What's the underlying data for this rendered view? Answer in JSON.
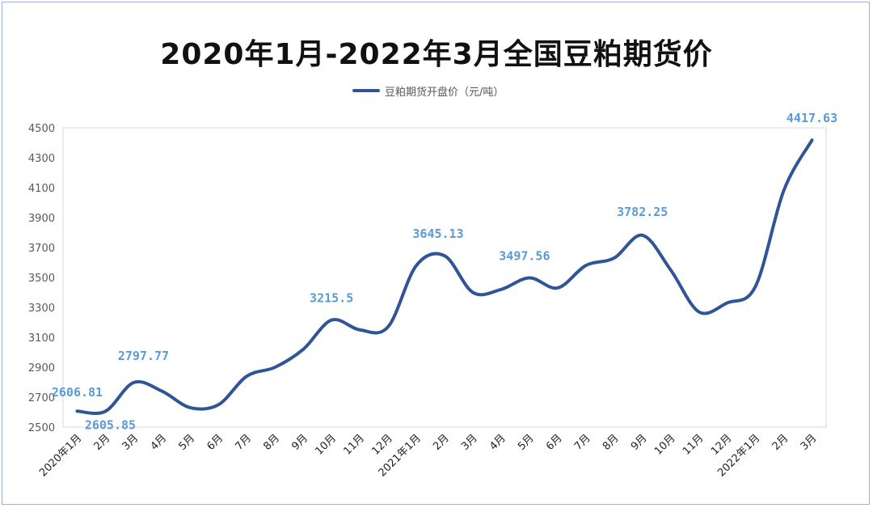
{
  "chart_data": {
    "type": "line",
    "title": "2020年1月-2022年3月全国豆粕期货价",
    "legend": "豆粕期货开盘价（元/吨）",
    "color": "#2f5597",
    "label_color": "#5b9bd5",
    "ylim": [
      2500,
      4500
    ],
    "yticks": [
      2500,
      2700,
      2900,
      3100,
      3300,
      3500,
      3700,
      3900,
      4100,
      4300,
      4500
    ],
    "categories": [
      "2020年1月",
      "2月",
      "3月",
      "4月",
      "5月",
      "6月",
      "7月",
      "8月",
      "9月",
      "10月",
      "11月",
      "12月",
      "2021年1月",
      "2月",
      "3月",
      "4月",
      "5月",
      "6月",
      "7月",
      "8月",
      "9月",
      "10月",
      "11月",
      "12月",
      "2022年1月",
      "2月",
      "3月"
    ],
    "values": [
      2606.81,
      2605.85,
      2797.77,
      2740,
      2630,
      2650,
      2840,
      2900,
      3020,
      3215.5,
      3150,
      3170,
      3580,
      3645.13,
      3400,
      3420,
      3497.56,
      3430,
      3580,
      3630,
      3782.25,
      3550,
      3270,
      3330,
      3440,
      4080,
      4417.63
    ],
    "data_labels": [
      {
        "index": 0,
        "text": "2606.81"
      },
      {
        "index": 1,
        "text": "2605.85"
      },
      {
        "index": 2,
        "text": "2797.77"
      },
      {
        "index": 9,
        "text": "3215.5"
      },
      {
        "index": 13,
        "text": "3645.13"
      },
      {
        "index": 16,
        "text": "3497.56"
      },
      {
        "index": 20,
        "text": "3782.25"
      },
      {
        "index": 26,
        "text": "4417.63"
      }
    ],
    "grid": false
  }
}
